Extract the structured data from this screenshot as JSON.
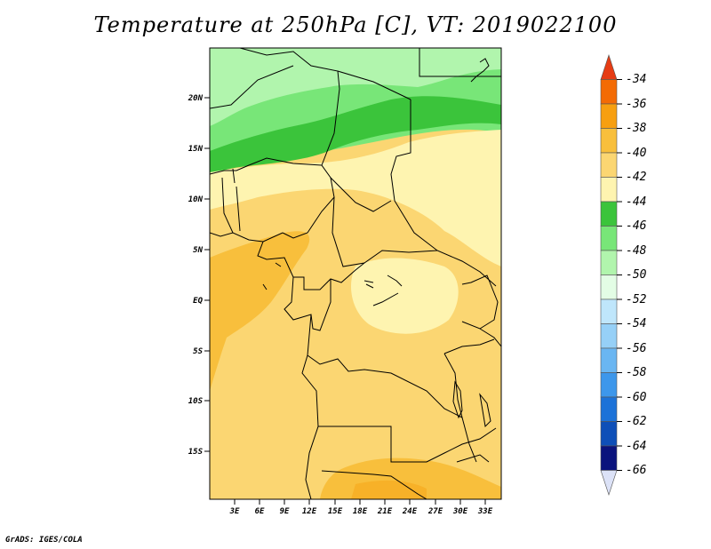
{
  "title": "Temperature at 250hPa [C], VT: 2019022100",
  "credit": "GrADS: IGES/COLA",
  "map": {
    "lat_labels": [
      "20N",
      "15N",
      "10N",
      "5N",
      "EQ",
      "5S",
      "10S",
      "15S"
    ],
    "lon_labels": [
      "3E",
      "6E",
      "9E",
      "12E",
      "15E",
      "18E",
      "21E",
      "24E",
      "27E",
      "30E",
      "33E"
    ]
  },
  "colorbar": {
    "labels": [
      "-34",
      "-36",
      "-38",
      "-40",
      "-42",
      "-44",
      "-46",
      "-48",
      "-50",
      "-52",
      "-54",
      "-56",
      "-58",
      "-60",
      "-62",
      "-64",
      "-66"
    ],
    "colors": [
      "#e63c14",
      "#f36b05",
      "#f79f10",
      "#f8bf3c",
      "#fbd672",
      "#fef4b0",
      "#3bc43b",
      "#78e678",
      "#b1f5ad",
      "#e3fde5",
      "#bfe6fb",
      "#96d0f7",
      "#6ab6f2",
      "#3d97eb",
      "#1c72d8",
      "#0e4fb8",
      "#0a137d",
      "#dce2f7"
    ]
  }
}
